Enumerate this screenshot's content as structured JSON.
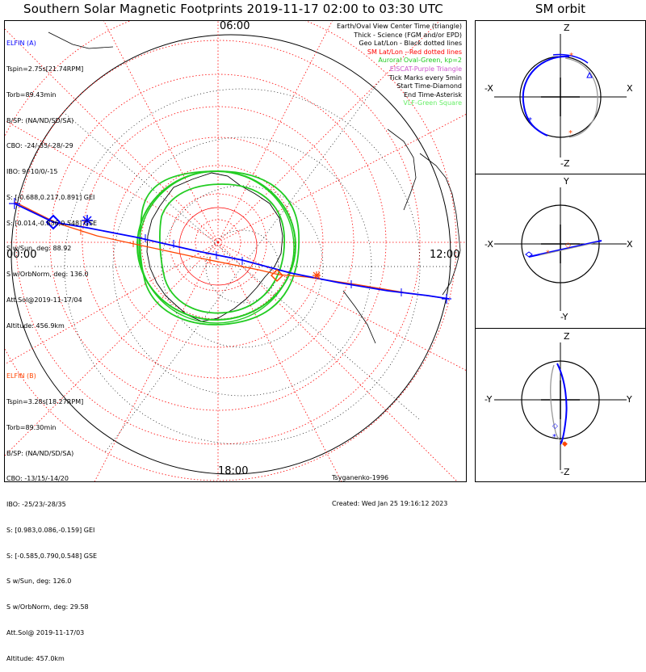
{
  "title": "Southern Solar Magnetic Footprints 2019-11-17 02:00 to 03:30 UTC",
  "sm_title": "SM orbit",
  "time_labels": {
    "top": "06:00",
    "left": "00:00",
    "right": "12:00",
    "bottom": "18:00"
  },
  "elfin_a": {
    "color": "#0000ff",
    "lines": [
      "ELFIN (A)",
      "Tspin=2.75s[21.74RPM]",
      "Torb=89.43min",
      "B/SP: (NA/ND/SD/SA)",
      "CBO: -24/-35/-28/-29",
      "IBO: 9/-10/0/-15",
      "S: [-0.688,0.217,0.891] GEI",
      "S: [0.014,-0.836,0.548] GSE",
      "S w/Sun, deg: 88.92",
      "S w/OrbNorm, deg: 136.0",
      "Att.Sol@2019-11-17/04",
      "Altitude: 456.9km"
    ]
  },
  "elfin_b": {
    "color": "#ff4500",
    "lines": [
      "ELFIN (B)",
      "Tspin=3.28s[18.27RPM]",
      "Torb=89.30min",
      "B/SP: (NA/ND/SD/SA)",
      "CBO: -13/15/-14/20",
      "IBO: -25/23/-28/35",
      "S: [0.983,0.086,-0.159] GEI",
      "S: [-0.585,0.790,0.548] GSE",
      "S w/Sun, deg: 126.0",
      "S w/OrbNorm, deg: 29.58",
      "Att.Sol@ 2019-11-17/03",
      "Altitude: 457.0km"
    ]
  },
  "legend": [
    {
      "text": "Earth/Oval View Center Time (triangle)",
      "color": "#000000"
    },
    {
      "text": "Thick - Science (FGM and/or EPD)",
      "color": "#000000"
    },
    {
      "text": "Geo Lat/Lon - Black dotted lines",
      "color": "#000000"
    },
    {
      "text": "SM Lat/Lon - Red dotted lines",
      "color": "#ff0000"
    },
    {
      "text": "Auroral Oval-Green, kp=2",
      "color": "#22cc22"
    },
    {
      "text": "EISCAT-Purple Triangle",
      "color": "#cc55cc"
    },
    {
      "text": "Tick Marks every 5min",
      "color": "#000000"
    },
    {
      "text": "Start Time-Diamond",
      "color": "#000000"
    },
    {
      "text": "End Time-Asterisk",
      "color": "#000000"
    },
    {
      "text": "VLF-Green Square",
      "color": "#66ee66"
    }
  ],
  "credit": [
    "Tsyganenko-1996",
    "Created: Wed Jan 25 19:16:12 2023"
  ],
  "sm_panels": [
    {
      "top": "Z",
      "bottom": "-Z",
      "left": "-X",
      "right": "X"
    },
    {
      "top": "Y",
      "bottom": "-Y",
      "left": "-X",
      "right": "X"
    },
    {
      "top": "Z",
      "bottom": "-Z",
      "left": "-Y",
      "right": "Y"
    }
  ],
  "colors": {
    "elfin_a": "#0000ff",
    "elfin_b": "#ff4500",
    "sm_grid": "#ff0000",
    "auroral_oval": "#22cc22"
  }
}
